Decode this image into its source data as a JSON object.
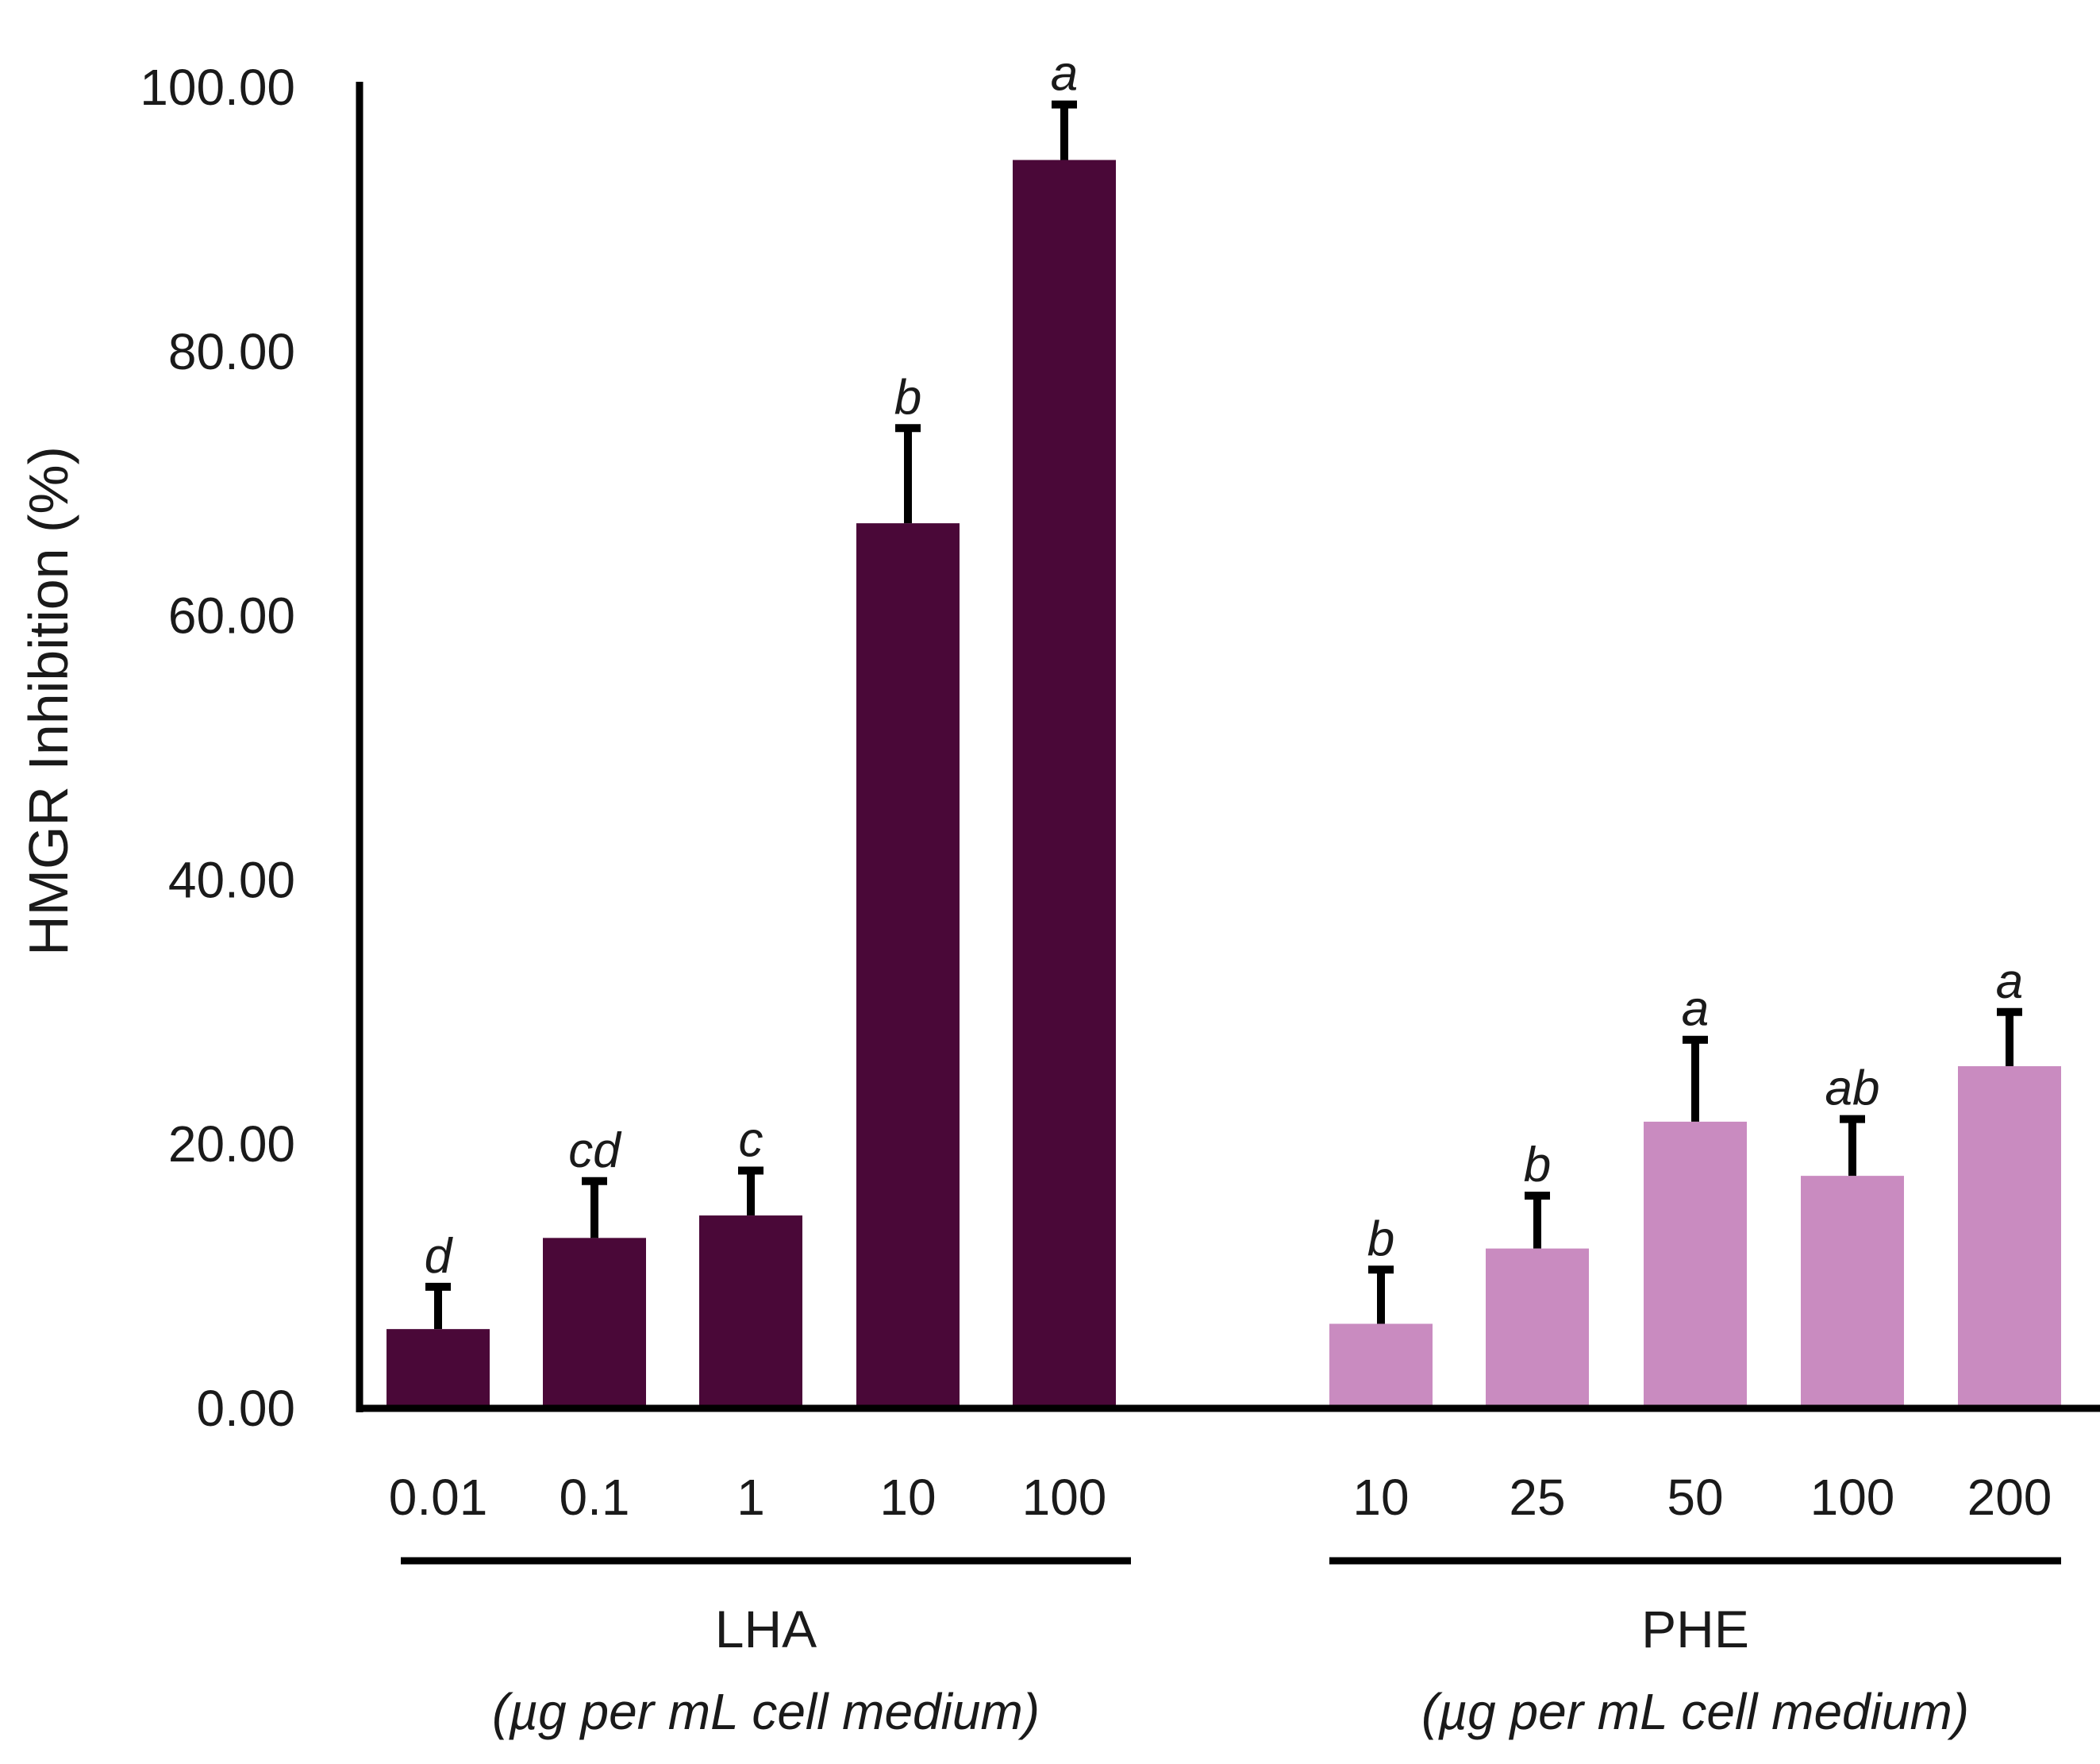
{
  "chart_data": {
    "type": "bar",
    "title": "",
    "xlabel": "",
    "ylabel": "HMGR Inhibition (%)",
    "ylim": [
      0,
      100
    ],
    "yticks": [
      "0.00",
      "20.00",
      "40.00",
      "60.00",
      "80.00",
      "100.00"
    ],
    "ytick_values": [
      0,
      20,
      40,
      60,
      80,
      100
    ],
    "grid": false,
    "legend": "none",
    "groups": [
      {
        "name": "LHA",
        "unit": "(µg per mL cell medium)",
        "color": "#4a0838",
        "categories": [
          "0.01",
          "0.1",
          "1",
          "10",
          "100"
        ],
        "values": [
          6.0,
          12.9,
          14.6,
          67.0,
          94.5
        ],
        "errors": [
          3.2,
          4.3,
          3.4,
          7.2,
          4.2
        ],
        "significance": [
          "d",
          "cd",
          "c",
          "b",
          "a"
        ]
      },
      {
        "name": "PHE",
        "unit": "(µg per mL cell medium)",
        "color": "#c98bc0",
        "categories": [
          "10",
          "25",
          "50",
          "100",
          "200"
        ],
        "values": [
          6.4,
          12.1,
          21.7,
          17.6,
          25.9
        ],
        "errors": [
          4.1,
          4.0,
          6.2,
          4.3,
          4.1
        ],
        "significance": [
          "b",
          "b",
          "a",
          "ab",
          "a"
        ]
      }
    ]
  }
}
